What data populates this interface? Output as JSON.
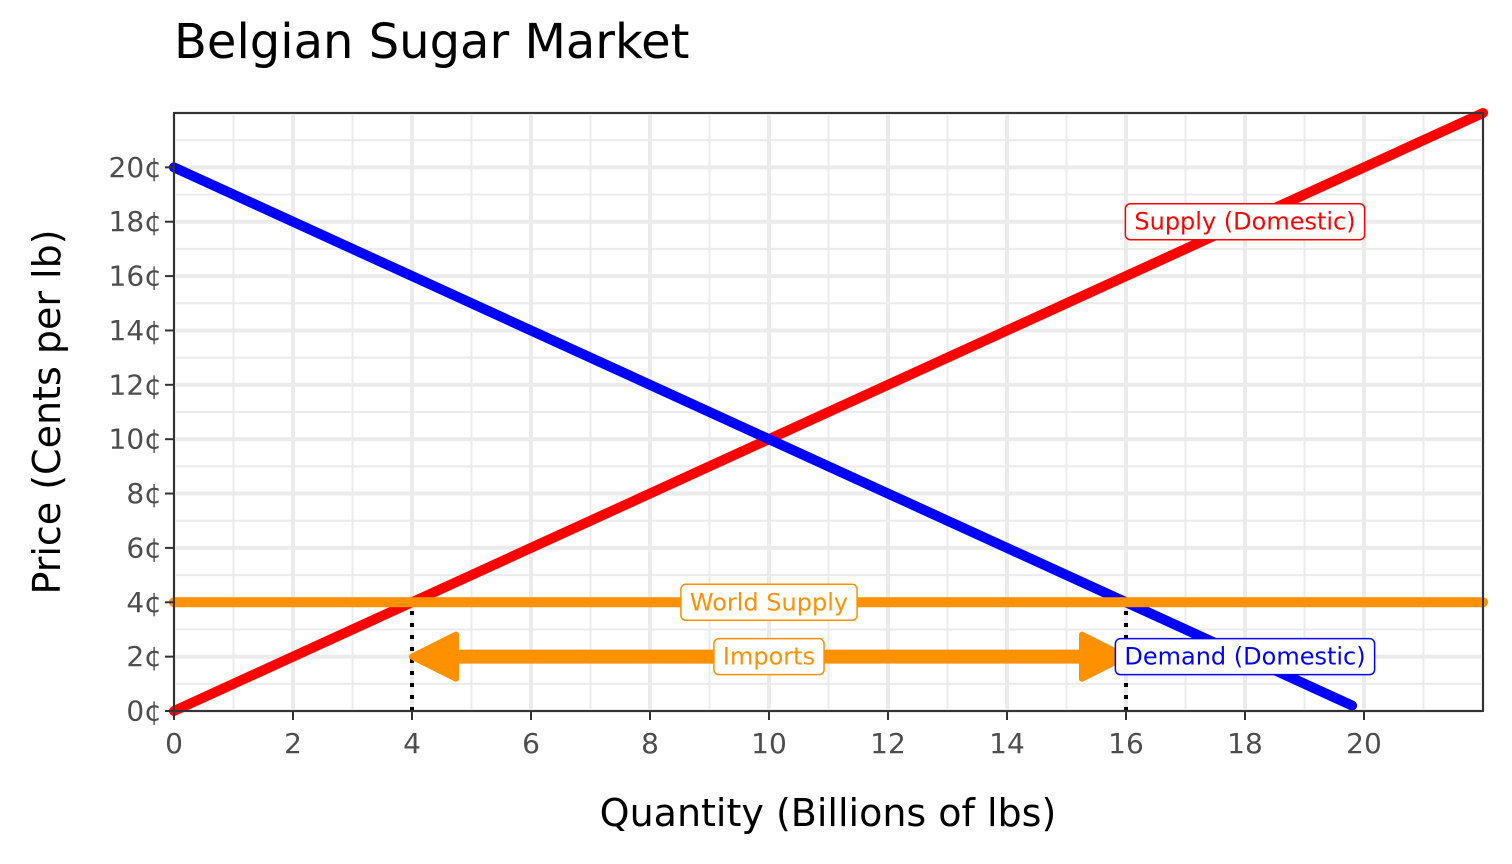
{
  "chart_data": {
    "type": "line",
    "title": "Belgian Sugar Market",
    "xlabel": "Quantity (Billions of lbs)",
    "ylabel": "Price (Cents per lb)",
    "xlim": [
      0,
      22
    ],
    "ylim": [
      0,
      22
    ],
    "x_ticks": [
      {
        "value": 0,
        "label": "0"
      },
      {
        "value": 2,
        "label": "2"
      },
      {
        "value": 4,
        "label": "4"
      },
      {
        "value": 6,
        "label": "6"
      },
      {
        "value": 8,
        "label": "8"
      },
      {
        "value": 10,
        "label": "10"
      },
      {
        "value": 12,
        "label": "12"
      },
      {
        "value": 14,
        "label": "14"
      },
      {
        "value": 16,
        "label": "16"
      },
      {
        "value": 18,
        "label": "18"
      },
      {
        "value": 20,
        "label": "20"
      }
    ],
    "y_ticks": [
      {
        "value": 0,
        "label": "0¢"
      },
      {
        "value": 2,
        "label": "2¢"
      },
      {
        "value": 4,
        "label": "4¢"
      },
      {
        "value": 6,
        "label": "6¢"
      },
      {
        "value": 8,
        "label": "8¢"
      },
      {
        "value": 10,
        "label": "10¢"
      },
      {
        "value": 12,
        "label": "12¢"
      },
      {
        "value": 14,
        "label": "14¢"
      },
      {
        "value": 16,
        "label": "16¢"
      },
      {
        "value": 18,
        "label": "18¢"
      },
      {
        "value": 20,
        "label": "20¢"
      }
    ],
    "grid": true,
    "series": [
      {
        "name": "Supply (Domestic)",
        "color": "#ff0000",
        "points": [
          [
            0,
            0
          ],
          [
            22,
            22
          ]
        ],
        "label": {
          "text": "Supply (Domestic)",
          "x": 18,
          "y": 18
        }
      },
      {
        "name": "Demand (Domestic)",
        "color": "#0000ff",
        "points": [
          [
            0,
            20
          ],
          [
            19.8,
            0.2
          ]
        ],
        "label": {
          "text": "Demand (Domestic)",
          "x": 18,
          "y": 2
        }
      },
      {
        "name": "World Supply",
        "color": "#ff9000",
        "points": [
          [
            0,
            4
          ],
          [
            22,
            4
          ]
        ],
        "label": {
          "text": "World Supply",
          "x": 10,
          "y": 4
        }
      }
    ],
    "annotations": [
      {
        "type": "double-arrow",
        "text": "Imports",
        "color": "#ff9000",
        "x_from": 4,
        "x_to": 16,
        "y": 2,
        "label": {
          "x": 10,
          "y": 2
        }
      }
    ],
    "reference_lines": [
      {
        "type": "vertical-dotted",
        "x": 4,
        "y_from": 0,
        "y_to": 4,
        "color": "#000000"
      },
      {
        "type": "vertical-dotted",
        "x": 16,
        "y_from": 0,
        "y_to": 4,
        "color": "#000000"
      }
    ]
  }
}
